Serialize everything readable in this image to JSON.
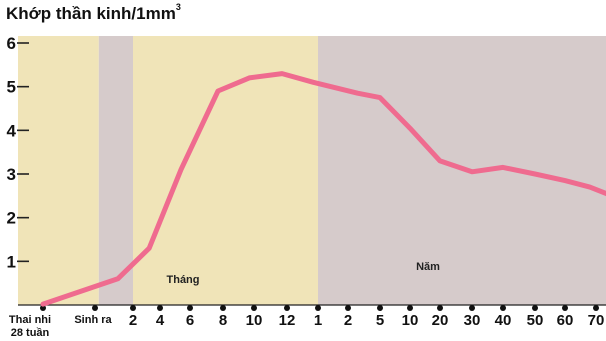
{
  "chart_data": {
    "type": "line",
    "title": "Khớp thần kinh/1mm",
    "title_superscript": "3",
    "ylim": [
      0,
      6
    ],
    "yticks": [
      "1",
      "2",
      "3",
      "4",
      "5",
      "6"
    ],
    "grid": false,
    "x_labels": [
      "Thai nhi\n28 tuần",
      "Sinh ra",
      "2",
      "4",
      "6",
      "8",
      "10",
      "12",
      "1",
      "2",
      "5",
      "10",
      "20",
      "30",
      "40",
      "50",
      "60",
      "70"
    ],
    "regions": [
      {
        "label": "",
        "from": 0,
        "to": 1,
        "color": "#f0e4b8"
      },
      {
        "label": "",
        "from": 1,
        "to": 2,
        "color": "#d6cbcb"
      },
      {
        "label": "Tháng",
        "from": 2,
        "to": 8,
        "color": "#f0e4b8"
      },
      {
        "label": "Năm",
        "from": 8,
        "to": 17,
        "color": "#d6cbcb"
      }
    ],
    "series": [
      {
        "color": "#ef6b8f",
        "points": [
          {
            "x": 0,
            "y": 0.02
          },
          {
            "x": 1.6,
            "y": 0.6
          },
          {
            "x": 2.6,
            "y": 1.3
          },
          {
            "x": 3.7,
            "y": 3.1
          },
          {
            "x": 4.85,
            "y": 4.9
          },
          {
            "x": 5.85,
            "y": 5.2
          },
          {
            "x": 6.85,
            "y": 5.3
          },
          {
            "x": 7.85,
            "y": 5.1
          },
          {
            "x": 9.3,
            "y": 4.85
          },
          {
            "x": 10,
            "y": 4.75
          },
          {
            "x": 11,
            "y": 4.05
          },
          {
            "x": 12,
            "y": 3.3
          },
          {
            "x": 13,
            "y": 3.05
          },
          {
            "x": 14,
            "y": 3.15
          },
          {
            "x": 15,
            "y": 3.0
          },
          {
            "x": 16,
            "y": 2.85
          },
          {
            "x": 16.8,
            "y": 2.7
          },
          {
            "x": 17.7,
            "y": 2.45
          }
        ]
      }
    ]
  }
}
